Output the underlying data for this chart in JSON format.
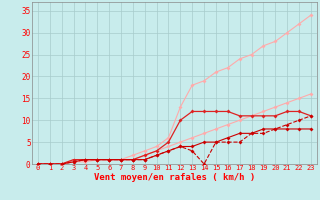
{
  "x": [
    0,
    1,
    2,
    3,
    4,
    5,
    6,
    7,
    8,
    9,
    10,
    11,
    12,
    13,
    14,
    15,
    16,
    17,
    18,
    19,
    20,
    21,
    22,
    23
  ],
  "line_pink1": [
    0,
    0,
    0,
    1,
    1,
    1,
    1,
    1,
    2,
    3,
    4,
    6,
    13,
    18,
    19,
    21,
    22,
    24,
    25,
    27,
    28,
    30,
    32,
    34
  ],
  "line_pink2": [
    0,
    0,
    0,
    0.5,
    0.5,
    1,
    1,
    1,
    1,
    2,
    3,
    4,
    5,
    6,
    7,
    8,
    9,
    10,
    11,
    12,
    13,
    14,
    15,
    16
  ],
  "line_red1": [
    0,
    0,
    0,
    1,
    1,
    1,
    1,
    1,
    1,
    2,
    3,
    5,
    10,
    12,
    12,
    12,
    12,
    11,
    11,
    11,
    11,
    12,
    12,
    11
  ],
  "line_red2": [
    0,
    0,
    0,
    0.5,
    1,
    1,
    1,
    1,
    1,
    1,
    2,
    3,
    4,
    3,
    0,
    5,
    5,
    5,
    7,
    7,
    8,
    9,
    10,
    11
  ],
  "line_red3": [
    0,
    0,
    0,
    0.5,
    1,
    1,
    1,
    1,
    1,
    1,
    2,
    3,
    4,
    4,
    5,
    5,
    6,
    7,
    7,
    8,
    8,
    8,
    8,
    8
  ],
  "bg_color": "#c8ecec",
  "grid_color": "#a8cccc",
  "xlabel": "Vent moyen/en rafales ( km/h )",
  "xlim": [
    -0.5,
    23.5
  ],
  "ylim": [
    0,
    37
  ],
  "yticks": [
    0,
    5,
    10,
    15,
    20,
    25,
    30,
    35
  ],
  "xticks": [
    0,
    1,
    2,
    3,
    4,
    5,
    6,
    7,
    8,
    9,
    10,
    11,
    12,
    13,
    14,
    15,
    16,
    17,
    18,
    19,
    20,
    21,
    22,
    23
  ]
}
